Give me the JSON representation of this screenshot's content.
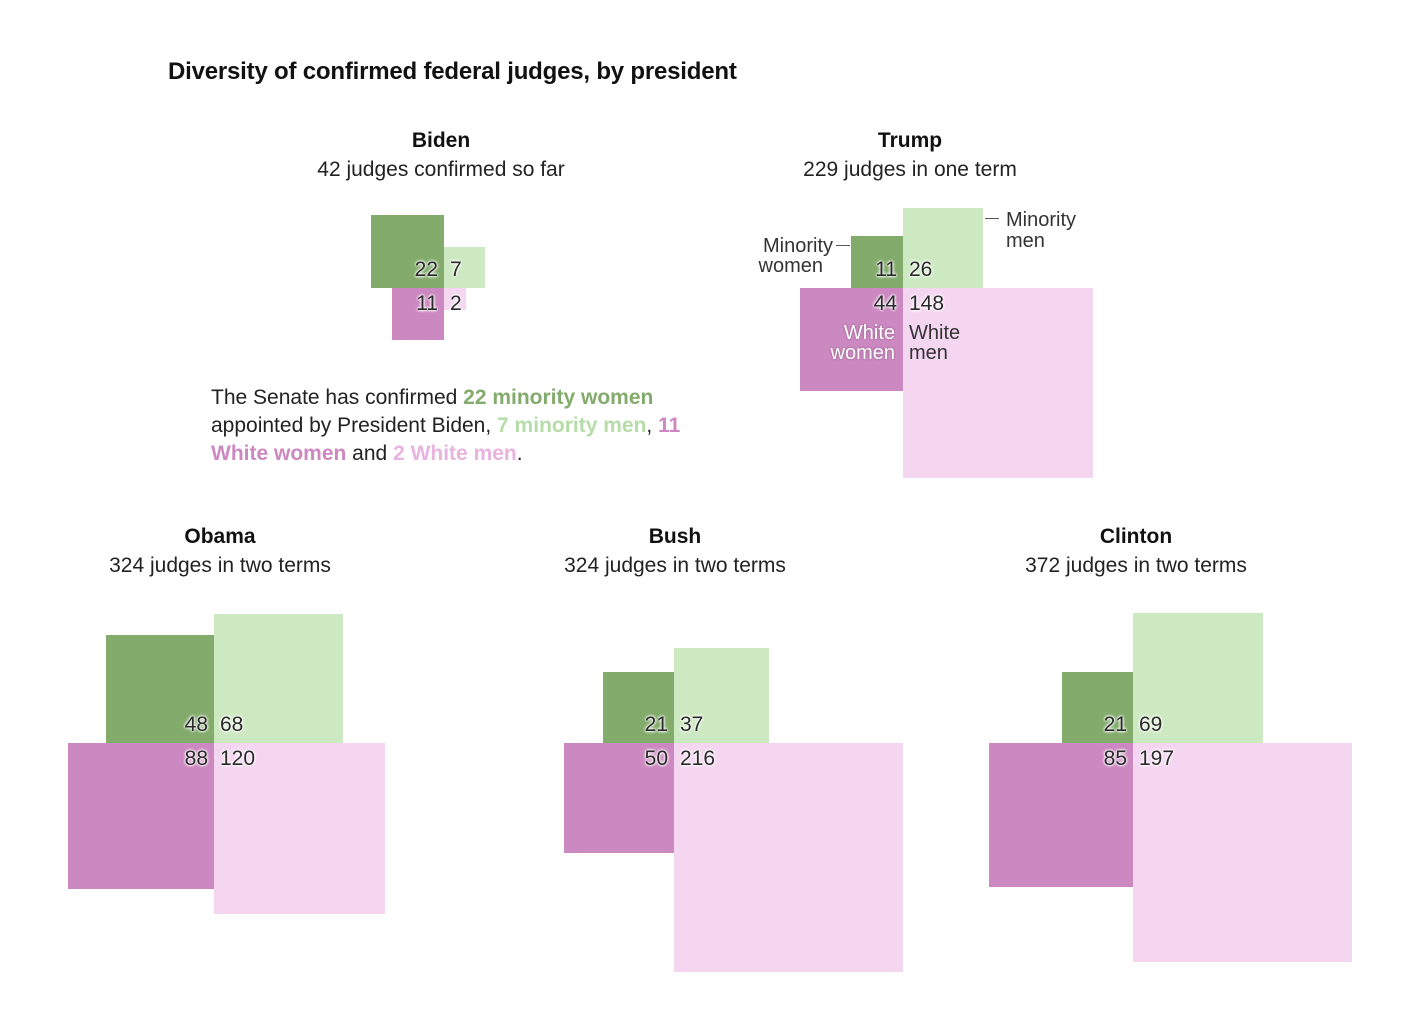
{
  "title": "Diversity of confirmed federal judges, by president",
  "colors": {
    "minority_women": "#83ab6c",
    "minority_men": "#cde9c1",
    "white_women": "#cc88c0",
    "white_men": "#f5d6f1"
  },
  "legend": {
    "minority_women": "Minority women",
    "minority_women_line1": "Minority",
    "minority_women_line2": "women",
    "minority_men": "Minority men",
    "minority_men_line1": "Minority",
    "minority_men_line2": "men",
    "white_women_line1": "White",
    "white_women_line2": "women",
    "white_men_line1": "White",
    "white_men_line2": "men"
  },
  "description": {
    "t1": "The Senate has confirmed ",
    "h1": "22 minority women",
    "t2": " appointed by President Biden, ",
    "h2": "7 minority men",
    "t3": ", ",
    "h3": "11 White women",
    "t4": " and ",
    "h4": "2 White men",
    "t5": "."
  },
  "chart_data": {
    "type": "proportional-square-quadrants",
    "title": "Diversity of confirmed federal judges, by president",
    "categories": [
      "Minority women",
      "Minority men",
      "White women",
      "White men"
    ],
    "panels": [
      {
        "president": "Biden",
        "subtitle": "42 judges confirmed so far",
        "minority_women": 22,
        "minority_men": 7,
        "white_women": 11,
        "white_men": 2
      },
      {
        "president": "Trump",
        "subtitle": "229 judges in one term",
        "minority_women": 11,
        "minority_men": 26,
        "white_women": 44,
        "white_men": 148
      },
      {
        "president": "Obama",
        "subtitle": "324 judges in two terms",
        "minority_women": 48,
        "minority_men": 68,
        "white_women": 88,
        "white_men": 120
      },
      {
        "president": "Bush",
        "subtitle": "324 judges in two terms",
        "minority_women": 21,
        "minority_men": 37,
        "white_women": 50,
        "white_men": 216
      },
      {
        "president": "Clinton",
        "subtitle": "372 judges in two terms",
        "minority_women": 21,
        "minority_men": 69,
        "white_women": 85,
        "white_men": 197
      }
    ]
  }
}
